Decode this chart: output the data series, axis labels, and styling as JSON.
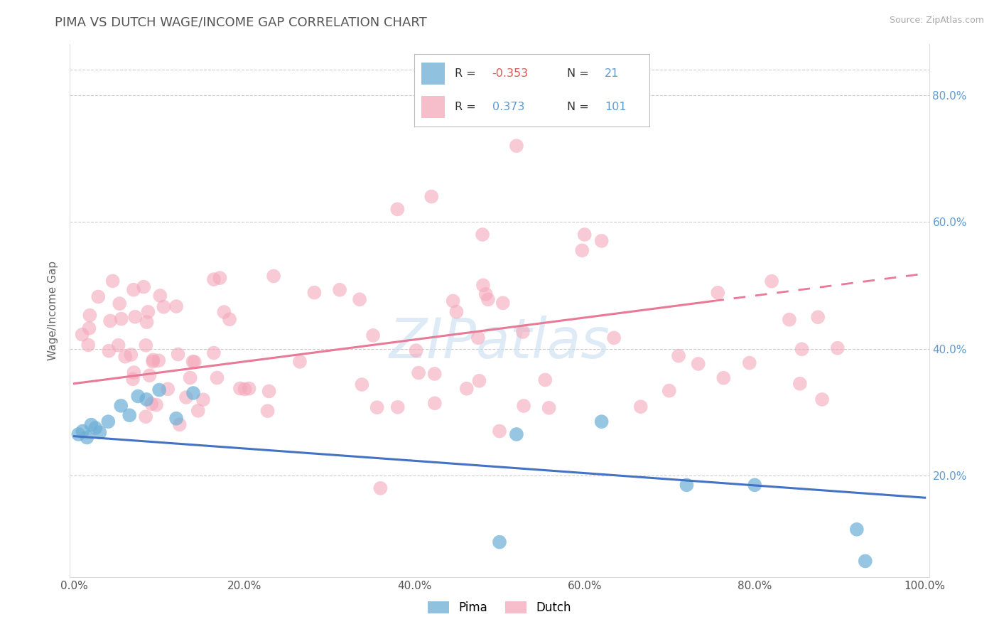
{
  "title": "PIMA VS DUTCH WAGE/INCOME GAP CORRELATION CHART",
  "source": "Source: ZipAtlas.com",
  "ylabel": "Wage/Income Gap",
  "xlim": [
    -0.005,
    1.005
  ],
  "ylim": [
    0.04,
    0.88
  ],
  "xticks": [
    0.0,
    0.2,
    0.4,
    0.6,
    0.8,
    1.0
  ],
  "yticks": [
    0.2,
    0.4,
    0.6,
    0.8
  ],
  "ytick_labels": [
    "20.0%",
    "40.0%",
    "60.0%",
    "80.0%"
  ],
  "xtick_labels": [
    "0.0%",
    "20.0%",
    "40.0%",
    "60.0%",
    "80.0%",
    "100.0%"
  ],
  "pima_color": "#6baed6",
  "dutch_color": "#f4a7b9",
  "background_color": "#ffffff",
  "grid_color": "#cccccc",
  "watermark": "ZIPatlas",
  "title_fontsize": 13,
  "axis_label_fontsize": 11,
  "tick_fontsize": 11,
  "pima_line_start_y": 0.262,
  "pima_line_end_y": 0.165,
  "dutch_line_start_y": 0.345,
  "dutch_line_end_solid": 0.75,
  "dutch_line_end_y_solid": 0.475,
  "dutch_line_end_y_dash": 0.52,
  "legend_R1": "-0.353",
  "legend_N1": "21",
  "legend_R2": "0.373",
  "legend_N2": "101"
}
